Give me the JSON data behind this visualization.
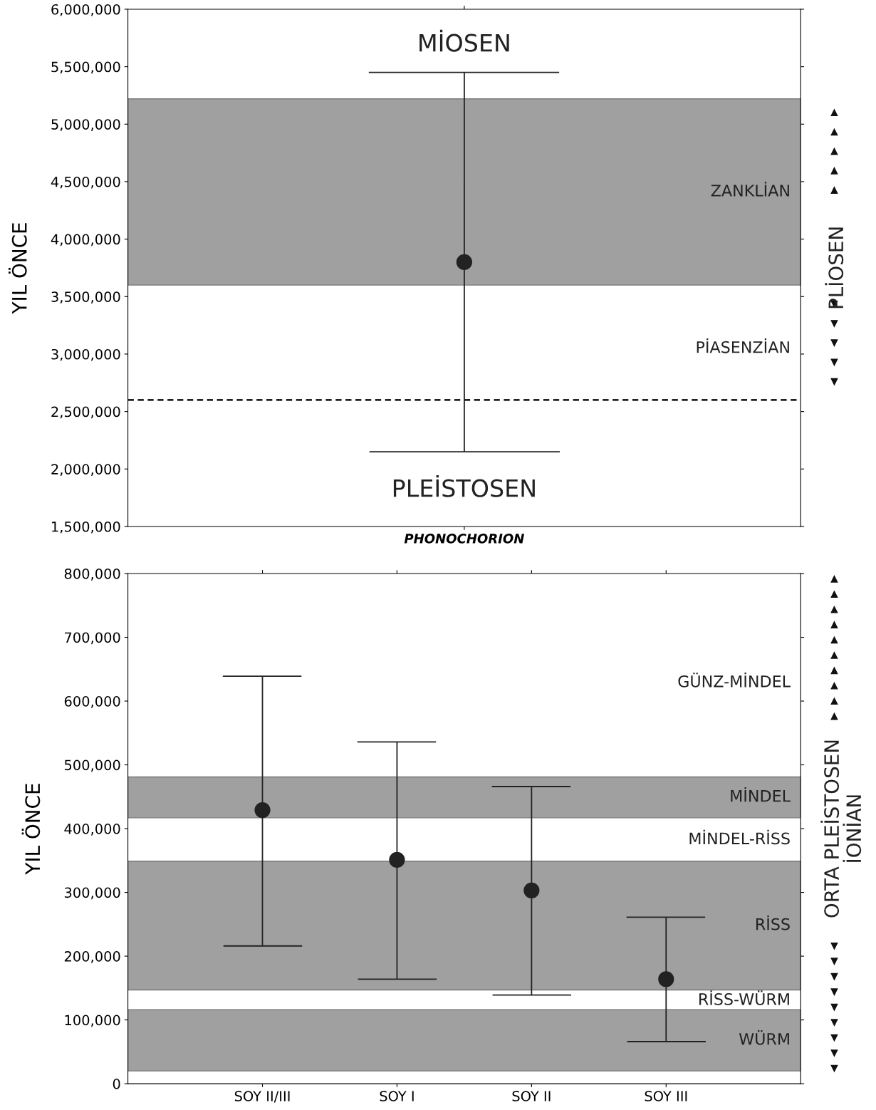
{
  "chart_data": [
    {
      "type": "scatter",
      "ylabel": "YIL ÖNCE",
      "categories": [
        "PHONOCHORION"
      ],
      "series": [
        {
          "color": "#222222",
          "values": [
            3800000
          ],
          "errors": [
            [
              2150000,
              5450000
            ]
          ]
        }
      ],
      "marker": "circle",
      "ylim": [
        1500000,
        6000000
      ],
      "yticks": [
        {
          "value": 1500000,
          "label": "1,500,000"
        },
        {
          "value": 2000000,
          "label": "2,000,000"
        },
        {
          "value": 2500000,
          "label": "2,500,000"
        },
        {
          "value": 3000000,
          "label": "3,000,000"
        },
        {
          "value": 3500000,
          "label": "3,500,000"
        },
        {
          "value": 4000000,
          "label": "4,000,000"
        },
        {
          "value": 4500000,
          "label": "4,500,000"
        },
        {
          "value": 5000000,
          "label": "5,000,000"
        },
        {
          "value": 5500000,
          "label": "5,500,000"
        },
        {
          "value": 6000000,
          "label": "6,000,000"
        }
      ],
      "grid": false,
      "ref_lines": [
        {
          "axis": "y",
          "value": 2600000,
          "line_style": "dashed",
          "color": "#222222"
        }
      ],
      "bands": [
        {
          "axis": "y",
          "from": 3600000,
          "to": 5220000,
          "label": "ZANKLİAN",
          "color": "#a0a0a0"
        }
      ],
      "annotations": [
        "MİOSEN",
        "PLEİSTOSEN",
        "PİASENZİAN",
        "PLİOSEN"
      ]
    },
    {
      "type": "scatter",
      "ylabel": "YIL ÖNCE",
      "categories": [
        "SOY II/III",
        "SOY I",
        "SOY II",
        "SOY III"
      ],
      "series": [
        {
          "color": "#222222",
          "values": [
            429000,
            351000,
            303000,
            164000
          ],
          "errors": [
            [
              216000,
              639000
            ],
            [
              164000,
              536000
            ],
            [
              139000,
              466000
            ],
            [
              66000,
              261000
            ]
          ]
        }
      ],
      "marker": "circle",
      "ylim": [
        0,
        800000
      ],
      "yticks": [
        0,
        {
          "value": 100000,
          "label": "100,000"
        },
        {
          "value": 200000,
          "label": "200,000"
        },
        {
          "value": 300000,
          "label": "300,000"
        },
        {
          "value": 400000,
          "label": "400,000"
        },
        {
          "value": 500000,
          "label": "500,000"
        },
        {
          "value": 600000,
          "label": "600,000"
        },
        {
          "value": 700000,
          "label": "700,000"
        },
        {
          "value": 800000,
          "label": "800,000"
        }
      ],
      "grid": false,
      "bands": [
        {
          "axis": "y",
          "from": 417000,
          "to": 481000,
          "label": "MİNDEL",
          "color": "#a0a0a0"
        },
        {
          "axis": "y",
          "from": 147000,
          "to": 349000,
          "label": "RİSS",
          "color": "#a0a0a0"
        },
        {
          "axis": "y",
          "from": 20000,
          "to": 116000,
          "label": "WÜRM",
          "color": "#a0a0a0"
        }
      ],
      "annotations": [
        "GÜNZ-MİNDEL",
        "MİNDEL-RİSS",
        "RİSS-WÜRM",
        "ORTA PLEİSTOSEN\nİONİAN"
      ]
    }
  ]
}
